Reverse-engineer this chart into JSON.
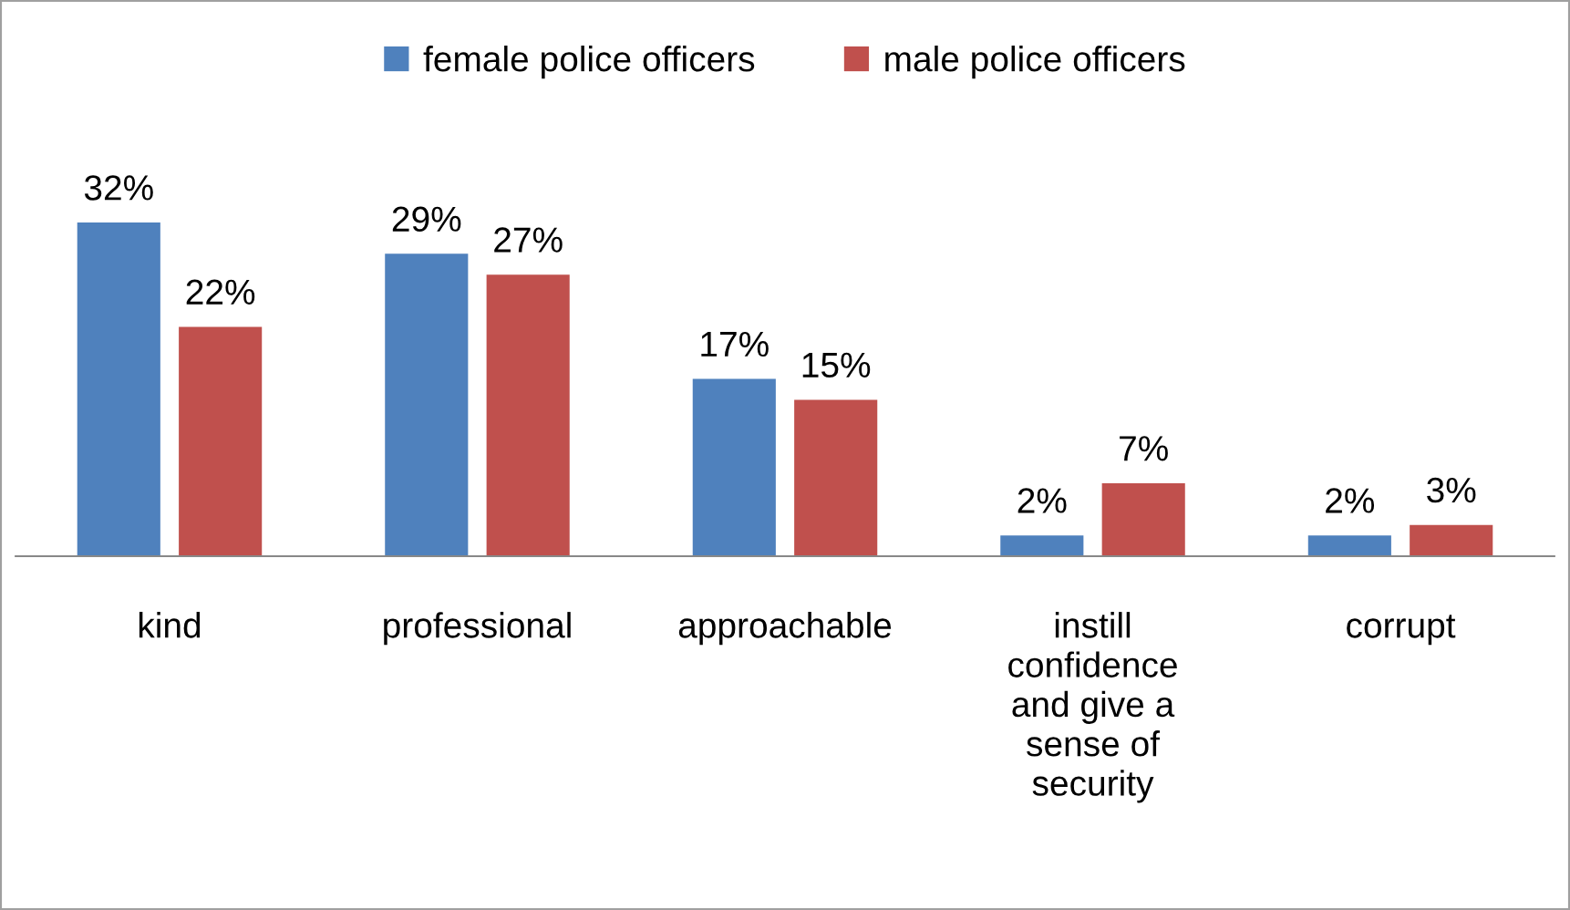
{
  "chart_data": {
    "type": "bar",
    "categories": [
      "kind",
      "professional",
      "approachable",
      "instill\nconfidence\nand give a\nsense of\nsecurity",
      "corrupt"
    ],
    "series": [
      {
        "name": "female police officers",
        "color": "#4f81bd",
        "values": [
          32,
          29,
          17,
          2,
          2
        ],
        "value_labels": [
          "32%",
          "29%",
          "17%",
          "2%",
          "2%"
        ]
      },
      {
        "name": "male police officers",
        "color": "#c0504d",
        "values": [
          22,
          27,
          15,
          7,
          3
        ],
        "value_labels": [
          "22%",
          "27%",
          "15%",
          "7%",
          "3%"
        ]
      }
    ],
    "legend": "top",
    "grid": false
  }
}
